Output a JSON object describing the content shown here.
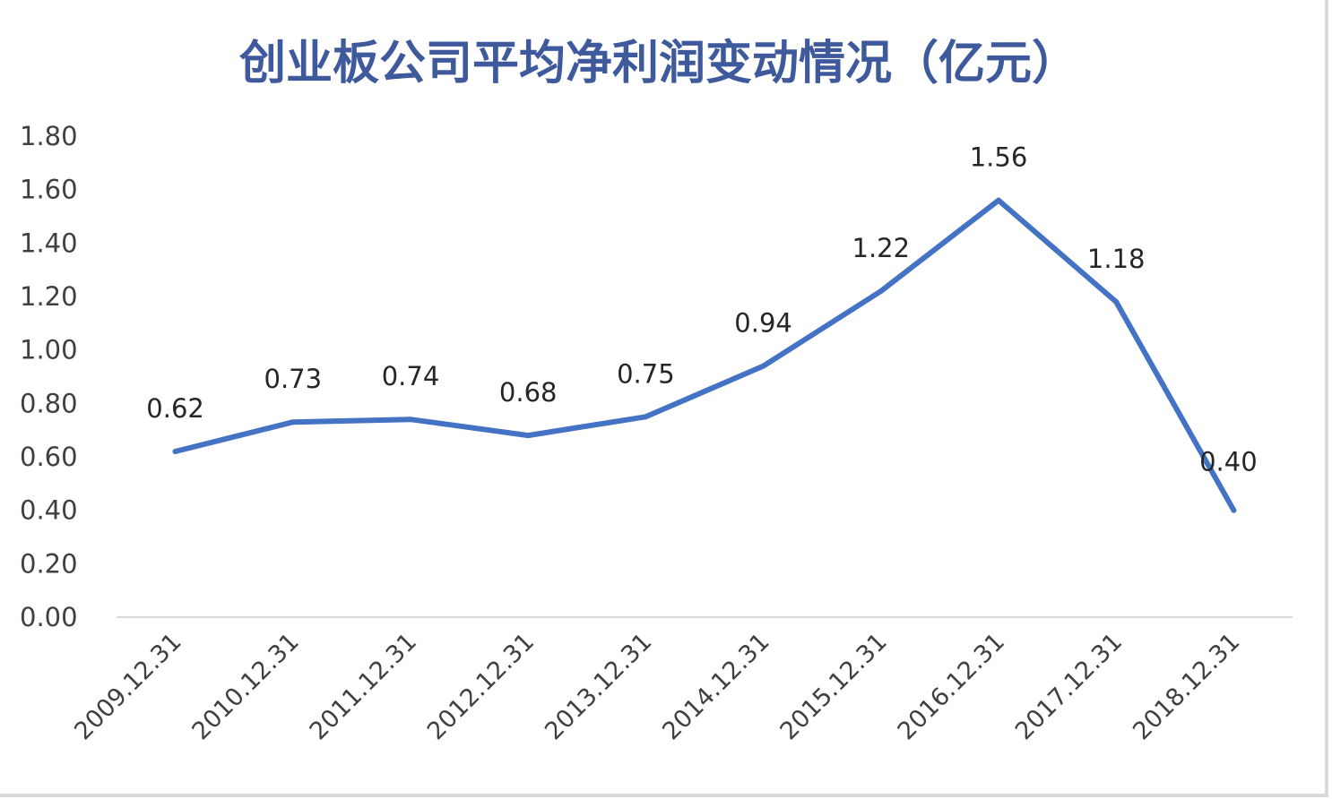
{
  "chart_data": {
    "type": "line",
    "title": "创业板公司平均净利润变动情况（亿元）",
    "xlabel": "",
    "ylabel": "",
    "categories": [
      "2009.12.31",
      "2010.12.31",
      "2011.12.31",
      "2012.12.31",
      "2013.12.31",
      "2014.12.31",
      "2015.12.31",
      "2016.12.31",
      "2017.12.31",
      "2018.12.31"
    ],
    "series": [
      {
        "values": [
          0.62,
          0.73,
          0.74,
          0.68,
          0.75,
          0.94,
          1.22,
          1.56,
          1.18,
          0.4
        ],
        "color": "#4472c4"
      }
    ],
    "data_labels": [
      "0.62",
      "0.73",
      "0.74",
      "0.68",
      "0.75",
      "0.94",
      "1.22",
      "1.56",
      "1.18",
      "0.40"
    ],
    "y_ticks": [
      "0.00",
      "0.20",
      "0.40",
      "0.60",
      "0.80",
      "1.00",
      "1.20",
      "1.40",
      "1.60",
      "1.80"
    ],
    "ylim": [
      0,
      1.8
    ],
    "grid": false,
    "legend": "none",
    "colors": {
      "title": "#3f5a9c",
      "line": "#4472c4",
      "axis": "#d9d9d9",
      "tick_text": "#404040"
    }
  }
}
